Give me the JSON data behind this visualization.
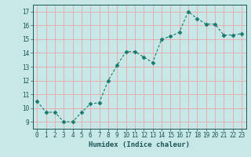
{
  "xlabel": "Humidex (Indice chaleur)",
  "x_values": [
    0,
    1,
    2,
    3,
    4,
    5,
    6,
    7,
    8,
    9,
    10,
    11,
    12,
    13,
    14,
    15,
    16,
    17,
    18,
    19,
    20,
    21,
    22,
    23
  ],
  "y_values": [
    10.5,
    9.7,
    9.7,
    9.0,
    9.0,
    9.7,
    10.3,
    10.4,
    12.0,
    13.1,
    14.1,
    14.1,
    13.7,
    13.3,
    15.0,
    15.2,
    15.5,
    17.0,
    16.5,
    16.1,
    16.1,
    15.3,
    15.3,
    15.4
  ],
  "line_color": "#1a7a6e",
  "marker": "D",
  "marker_size": 2.5,
  "background_color": "#c8e8e8",
  "grid_color": "#e8a8a8",
  "ylim": [
    8.5,
    17.5
  ],
  "xlim": [
    -0.5,
    23.5
  ],
  "yticks": [
    9,
    10,
    11,
    12,
    13,
    14,
    15,
    16,
    17
  ],
  "xticks": [
    0,
    1,
    2,
    3,
    4,
    5,
    6,
    7,
    8,
    9,
    10,
    11,
    12,
    13,
    14,
    15,
    16,
    17,
    18,
    19,
    20,
    21,
    22,
    23
  ],
  "tick_label_fontsize": 5.5,
  "xlabel_fontsize": 6.5,
  "label_color": "#1a5555",
  "spine_color": "#1a5555"
}
